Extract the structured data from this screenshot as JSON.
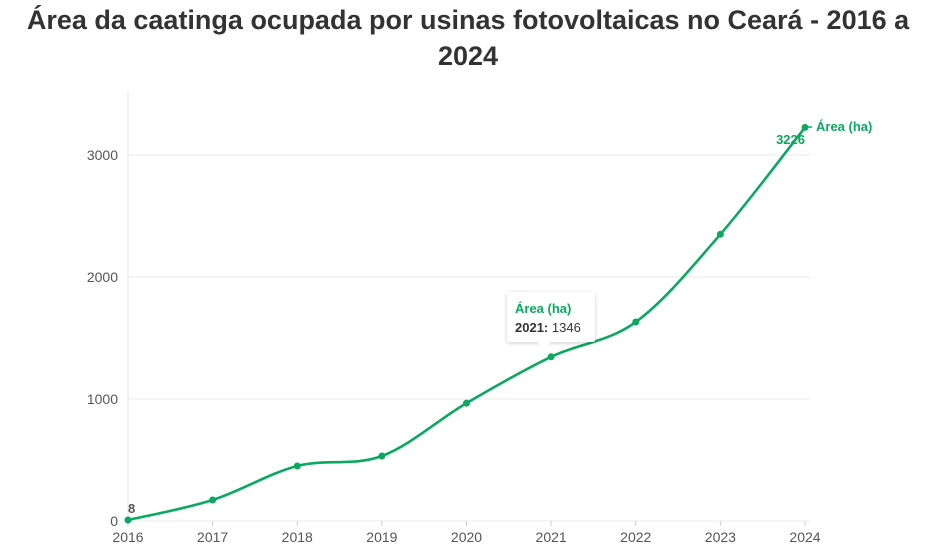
{
  "chart_data": {
    "type": "line",
    "title": "Área da caatinga ocupada por usinas fotovoltaicas no Ceará - 2016 a 2024",
    "xlabel": "",
    "ylabel": "",
    "x": [
      "2016",
      "2017",
      "2018",
      "2019",
      "2020",
      "2021",
      "2022",
      "2023",
      "2024"
    ],
    "series": [
      {
        "name": "Área (ha)",
        "values": [
          8,
          172,
          451,
          533,
          966,
          1346,
          1631,
          2350,
          3226
        ],
        "color": "#0aa860"
      }
    ],
    "yticks": [
      "0",
      "1000",
      "2000",
      "3000"
    ],
    "ylim": [
      0,
      3500
    ],
    "grid": true,
    "labels": {
      "first": "8",
      "last": "3226"
    },
    "tooltip": {
      "series": "Área (ha)",
      "year": "2021:",
      "value": "1346"
    }
  }
}
